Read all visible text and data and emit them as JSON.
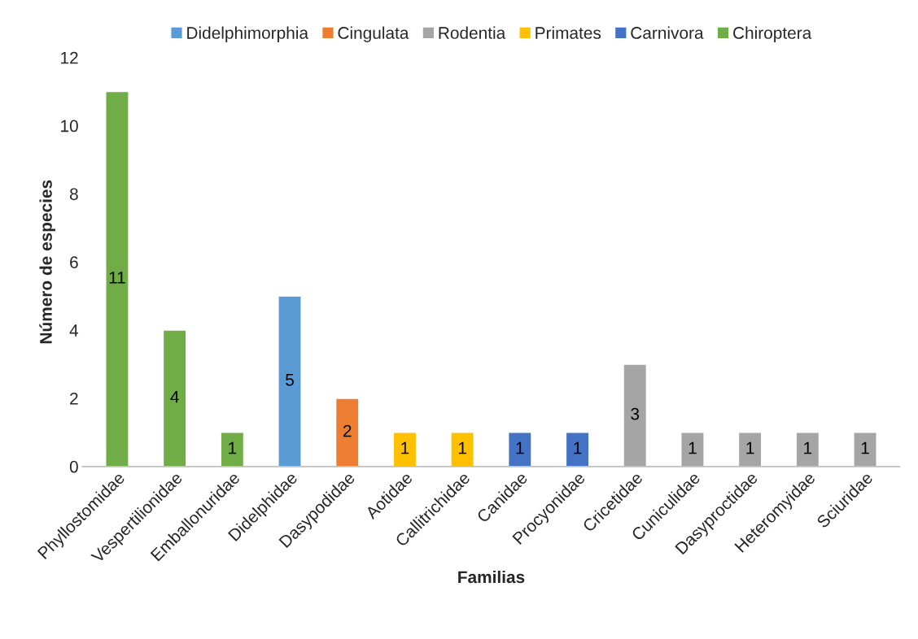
{
  "chart_data": {
    "type": "bar",
    "xlabel": "Familias",
    "ylabel": "Número de especies",
    "categories": [
      "Phyllostomidae",
      "Vespertilionidae",
      "Emballonuridae",
      "Didelphidae",
      "Dasypodidae",
      "Aotidae",
      "Callitrichidae",
      "Canidae",
      "Procyonidae",
      "Cricetidae",
      "Cuniculidae",
      "Dasyproctidae",
      "Heteromyidae",
      "Sciuridae"
    ],
    "series": [
      {
        "name": "Didelphimorphia",
        "color": "#5b9bd5",
        "values": [
          null,
          null,
          null,
          5,
          null,
          null,
          null,
          null,
          null,
          null,
          null,
          null,
          null,
          null
        ]
      },
      {
        "name": "Cingulata",
        "color": "#ed7d31",
        "values": [
          null,
          null,
          null,
          null,
          2,
          null,
          null,
          null,
          null,
          null,
          null,
          null,
          null,
          null
        ]
      },
      {
        "name": "Rodentia",
        "color": "#a5a5a5",
        "values": [
          null,
          null,
          null,
          null,
          null,
          null,
          null,
          null,
          null,
          3,
          1,
          1,
          1,
          1
        ]
      },
      {
        "name": "Primates",
        "color": "#ffc000",
        "values": [
          null,
          null,
          null,
          null,
          null,
          1,
          1,
          null,
          null,
          null,
          null,
          null,
          null,
          null
        ]
      },
      {
        "name": "Carnivora",
        "color": "#4472c4",
        "values": [
          null,
          null,
          null,
          null,
          null,
          null,
          null,
          1,
          1,
          null,
          null,
          null,
          null,
          null
        ]
      },
      {
        "name": "Chiroptera",
        "color": "#70ad47",
        "values": [
          11,
          4,
          1,
          null,
          null,
          null,
          null,
          null,
          null,
          null,
          null,
          null,
          null,
          null
        ]
      }
    ],
    "data_labels": true,
    "ylim": [
      0,
      12
    ],
    "yticks": [
      0,
      2,
      4,
      6,
      8,
      10,
      12
    ],
    "grid": false,
    "legend": "top"
  }
}
